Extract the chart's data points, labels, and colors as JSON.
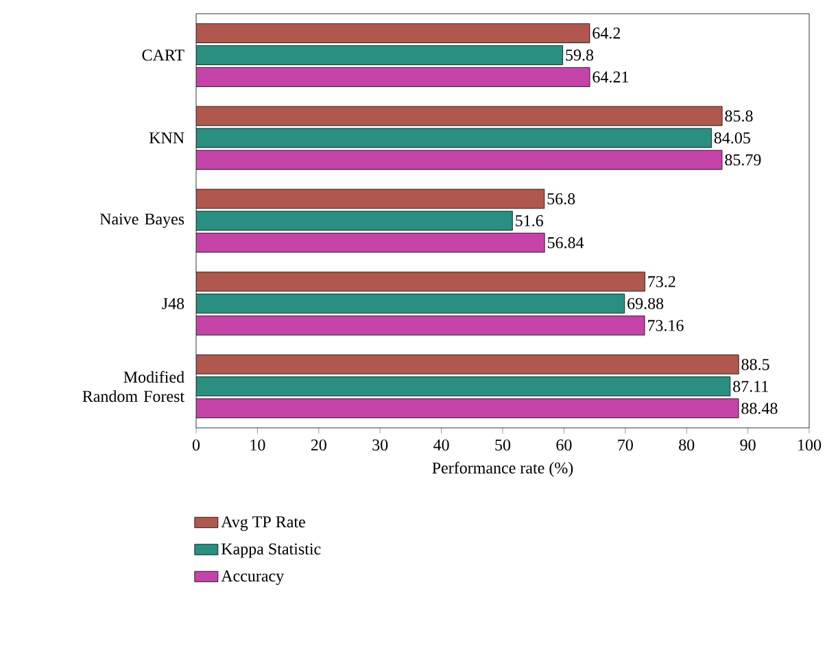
{
  "chart_data": {
    "type": "bar",
    "orientation": "horizontal",
    "xlabel": "Performance rate (%)",
    "categories": [
      "CART",
      "KNN",
      "Naive Bayes",
      "J48",
      "Modified Random Forest"
    ],
    "series": [
      {
        "name": "Avg TP Rate",
        "color": "#b0584e",
        "values": [
          64.2,
          85.8,
          56.8,
          73.2,
          88.5
        ]
      },
      {
        "name": "Kappa Statistic",
        "color": "#2a8f80",
        "values": [
          59.8,
          84.05,
          51.6,
          69.88,
          87.11
        ]
      },
      {
        "name": "Accuracy",
        "color": "#c444a8",
        "values": [
          64.21,
          85.79,
          56.84,
          73.16,
          88.48
        ]
      }
    ],
    "xlim": [
      0,
      100
    ],
    "xticks": [
      0,
      10,
      20,
      30,
      40,
      50,
      60,
      70,
      80,
      90,
      100
    ],
    "data_labels": true,
    "legend": "bottom"
  }
}
